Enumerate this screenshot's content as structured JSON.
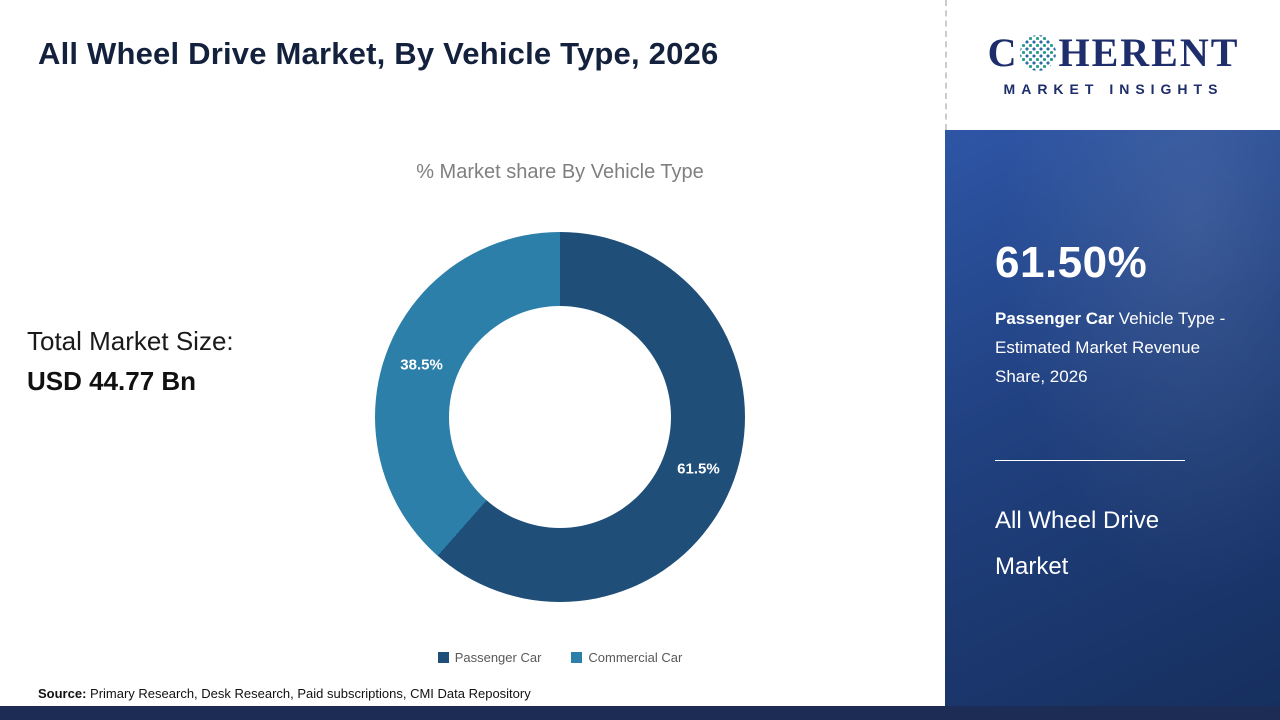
{
  "header": {
    "title": "All Wheel Drive Market, By Vehicle Type, 2026"
  },
  "logo": {
    "text_before": "C",
    "text_after": "HERENT",
    "subtitle": "MARKET INSIGHTS"
  },
  "chart": {
    "title": "% Market share By Vehicle Type"
  },
  "chart_data": {
    "type": "pie",
    "donut": true,
    "title": "% Market share By Vehicle Type",
    "categories": [
      "Passenger Car",
      "Commercial Car"
    ],
    "values": [
      61.5,
      38.5
    ],
    "labels": [
      "61.5%",
      "38.5%"
    ],
    "colors": [
      "#1f4e79",
      "#2b7fa8"
    ],
    "start_angle_deg": 0,
    "direction": "clockwise",
    "legend_position": "bottom"
  },
  "market_size": {
    "label": "Total Market Size:",
    "value": "USD 44.77 Bn"
  },
  "legend": [
    {
      "label": "Passenger Car",
      "color": "#1f4e79"
    },
    {
      "label": "Commercial Car",
      "color": "#2b7fa8"
    }
  ],
  "source": {
    "prefix": "Source:",
    "text": " Primary Research, Desk Research, Paid subscriptions, CMI Data Repository"
  },
  "sidebar": {
    "stat_value": "61.50%",
    "stat_desc_bold": "Passenger Car",
    "stat_desc_rest": " Vehicle Type - Estimated Market Revenue Share, 2026",
    "footer_title": "All Wheel Drive Market"
  }
}
